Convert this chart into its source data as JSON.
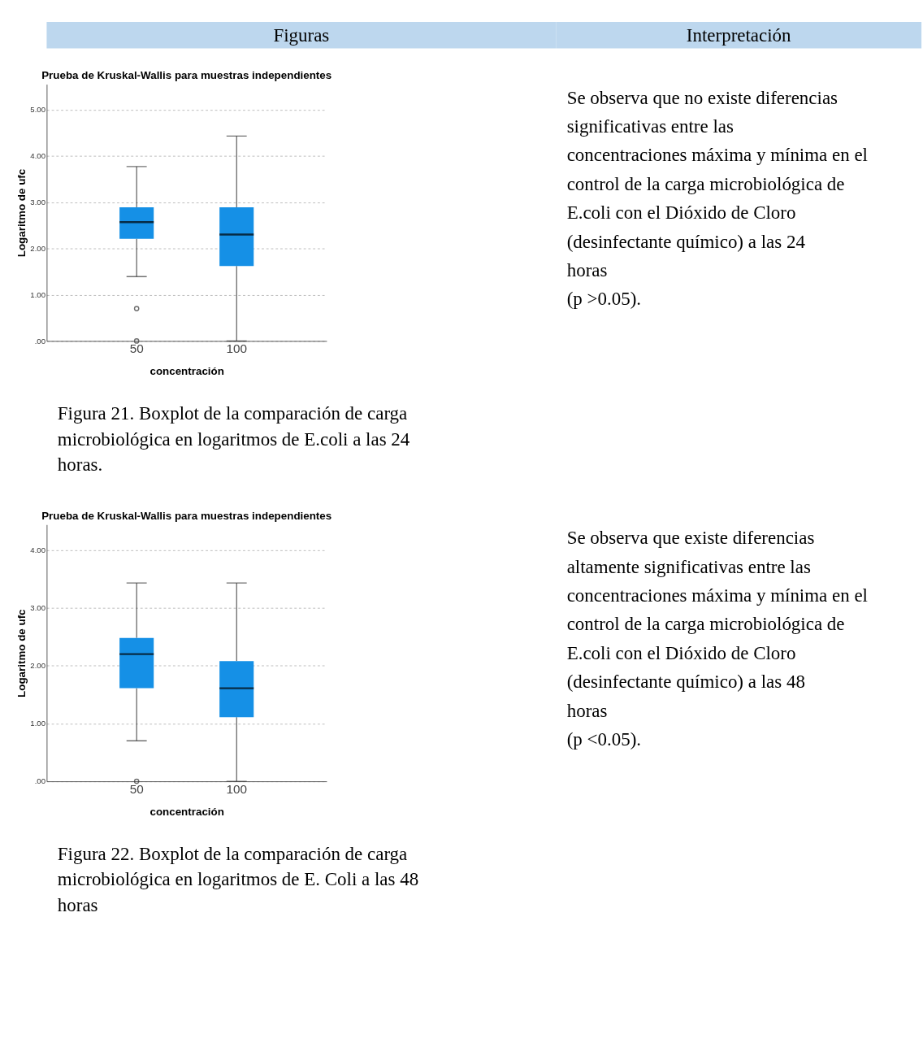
{
  "chart_data": [
    {
      "type": "box",
      "title": "Prueba de Kruskal-Wallis para muestras independientes",
      "xlabel": "concentración",
      "ylabel": "Logaritmo de ufc",
      "categories": [
        "50",
        "100"
      ],
      "color": "#1590e6",
      "boxes": [
        {
          "low": 1.39,
          "q1": 2.21,
          "median": 2.57,
          "q3": 2.89,
          "high": 3.77,
          "outliers": [
            0.7,
            0.0
          ]
        },
        {
          "low": 0.0,
          "q1": 1.62,
          "median": 2.3,
          "q3": 2.89,
          "high": 4.43
        }
      ],
      "ylim": [
        0,
        5.55
      ],
      "yticks": [
        {
          "value": 0,
          "label": ".00"
        },
        {
          "value": 1,
          "label": "1.00"
        },
        {
          "value": 2,
          "label": "2.00"
        },
        {
          "value": 3,
          "label": "3.00"
        },
        {
          "value": 4,
          "label": "4.00"
        },
        {
          "value": 5,
          "label": "5.00"
        }
      ],
      "grid": "y",
      "annotations": [
        "Figuras",
        "Interpretación",
        "Figura 21. Boxplot de la comparación de carga microbiológica en logaritmos de E.coli a las 24 horas.",
        "Se observa que no existe diferencias significativas entre las concentraciones máxima y mínima en el control de la carga microbiológica de E.coli con el Dióxido de Cloro (desinfectante químico) a las 24 horas\n(p >0.05)."
      ]
    },
    {
      "type": "box",
      "title": "Prueba de Kruskal-Wallis para muestras independientes",
      "xlabel": "concentración",
      "ylabel": "Logaritmo de ufc",
      "categories": [
        "50",
        "100"
      ],
      "color": "#1590e6",
      "boxes": [
        {
          "low": 0.7,
          "q1": 1.61,
          "median": 2.2,
          "q3": 2.48,
          "high": 3.43,
          "outliers": [
            0.0
          ]
        },
        {
          "low": 0.0,
          "q1": 1.11,
          "median": 1.61,
          "q3": 2.08,
          "high": 3.43
        }
      ],
      "ylim": [
        0,
        4.44
      ],
      "yticks": [
        {
          "value": 0,
          "label": ".00"
        },
        {
          "value": 1,
          "label": "1.00"
        },
        {
          "value": 2,
          "label": "2.00"
        },
        {
          "value": 3,
          "label": "3.00"
        },
        {
          "value": 4,
          "label": "4.00"
        }
      ],
      "grid": "y",
      "annotations": [
        "Figura 22. Boxplot de la comparación de carga microbiológica en logaritmos de E. Coli a las 48 horas",
        "Se observa que existe diferencias altamente significativas entre las concentraciones máxima y mínima en el control de la carga microbiológica de E.coli con el Dióxido de Cloro (desinfectante químico) a las 48 horas\n(p <0.05)."
      ]
    }
  ]
}
